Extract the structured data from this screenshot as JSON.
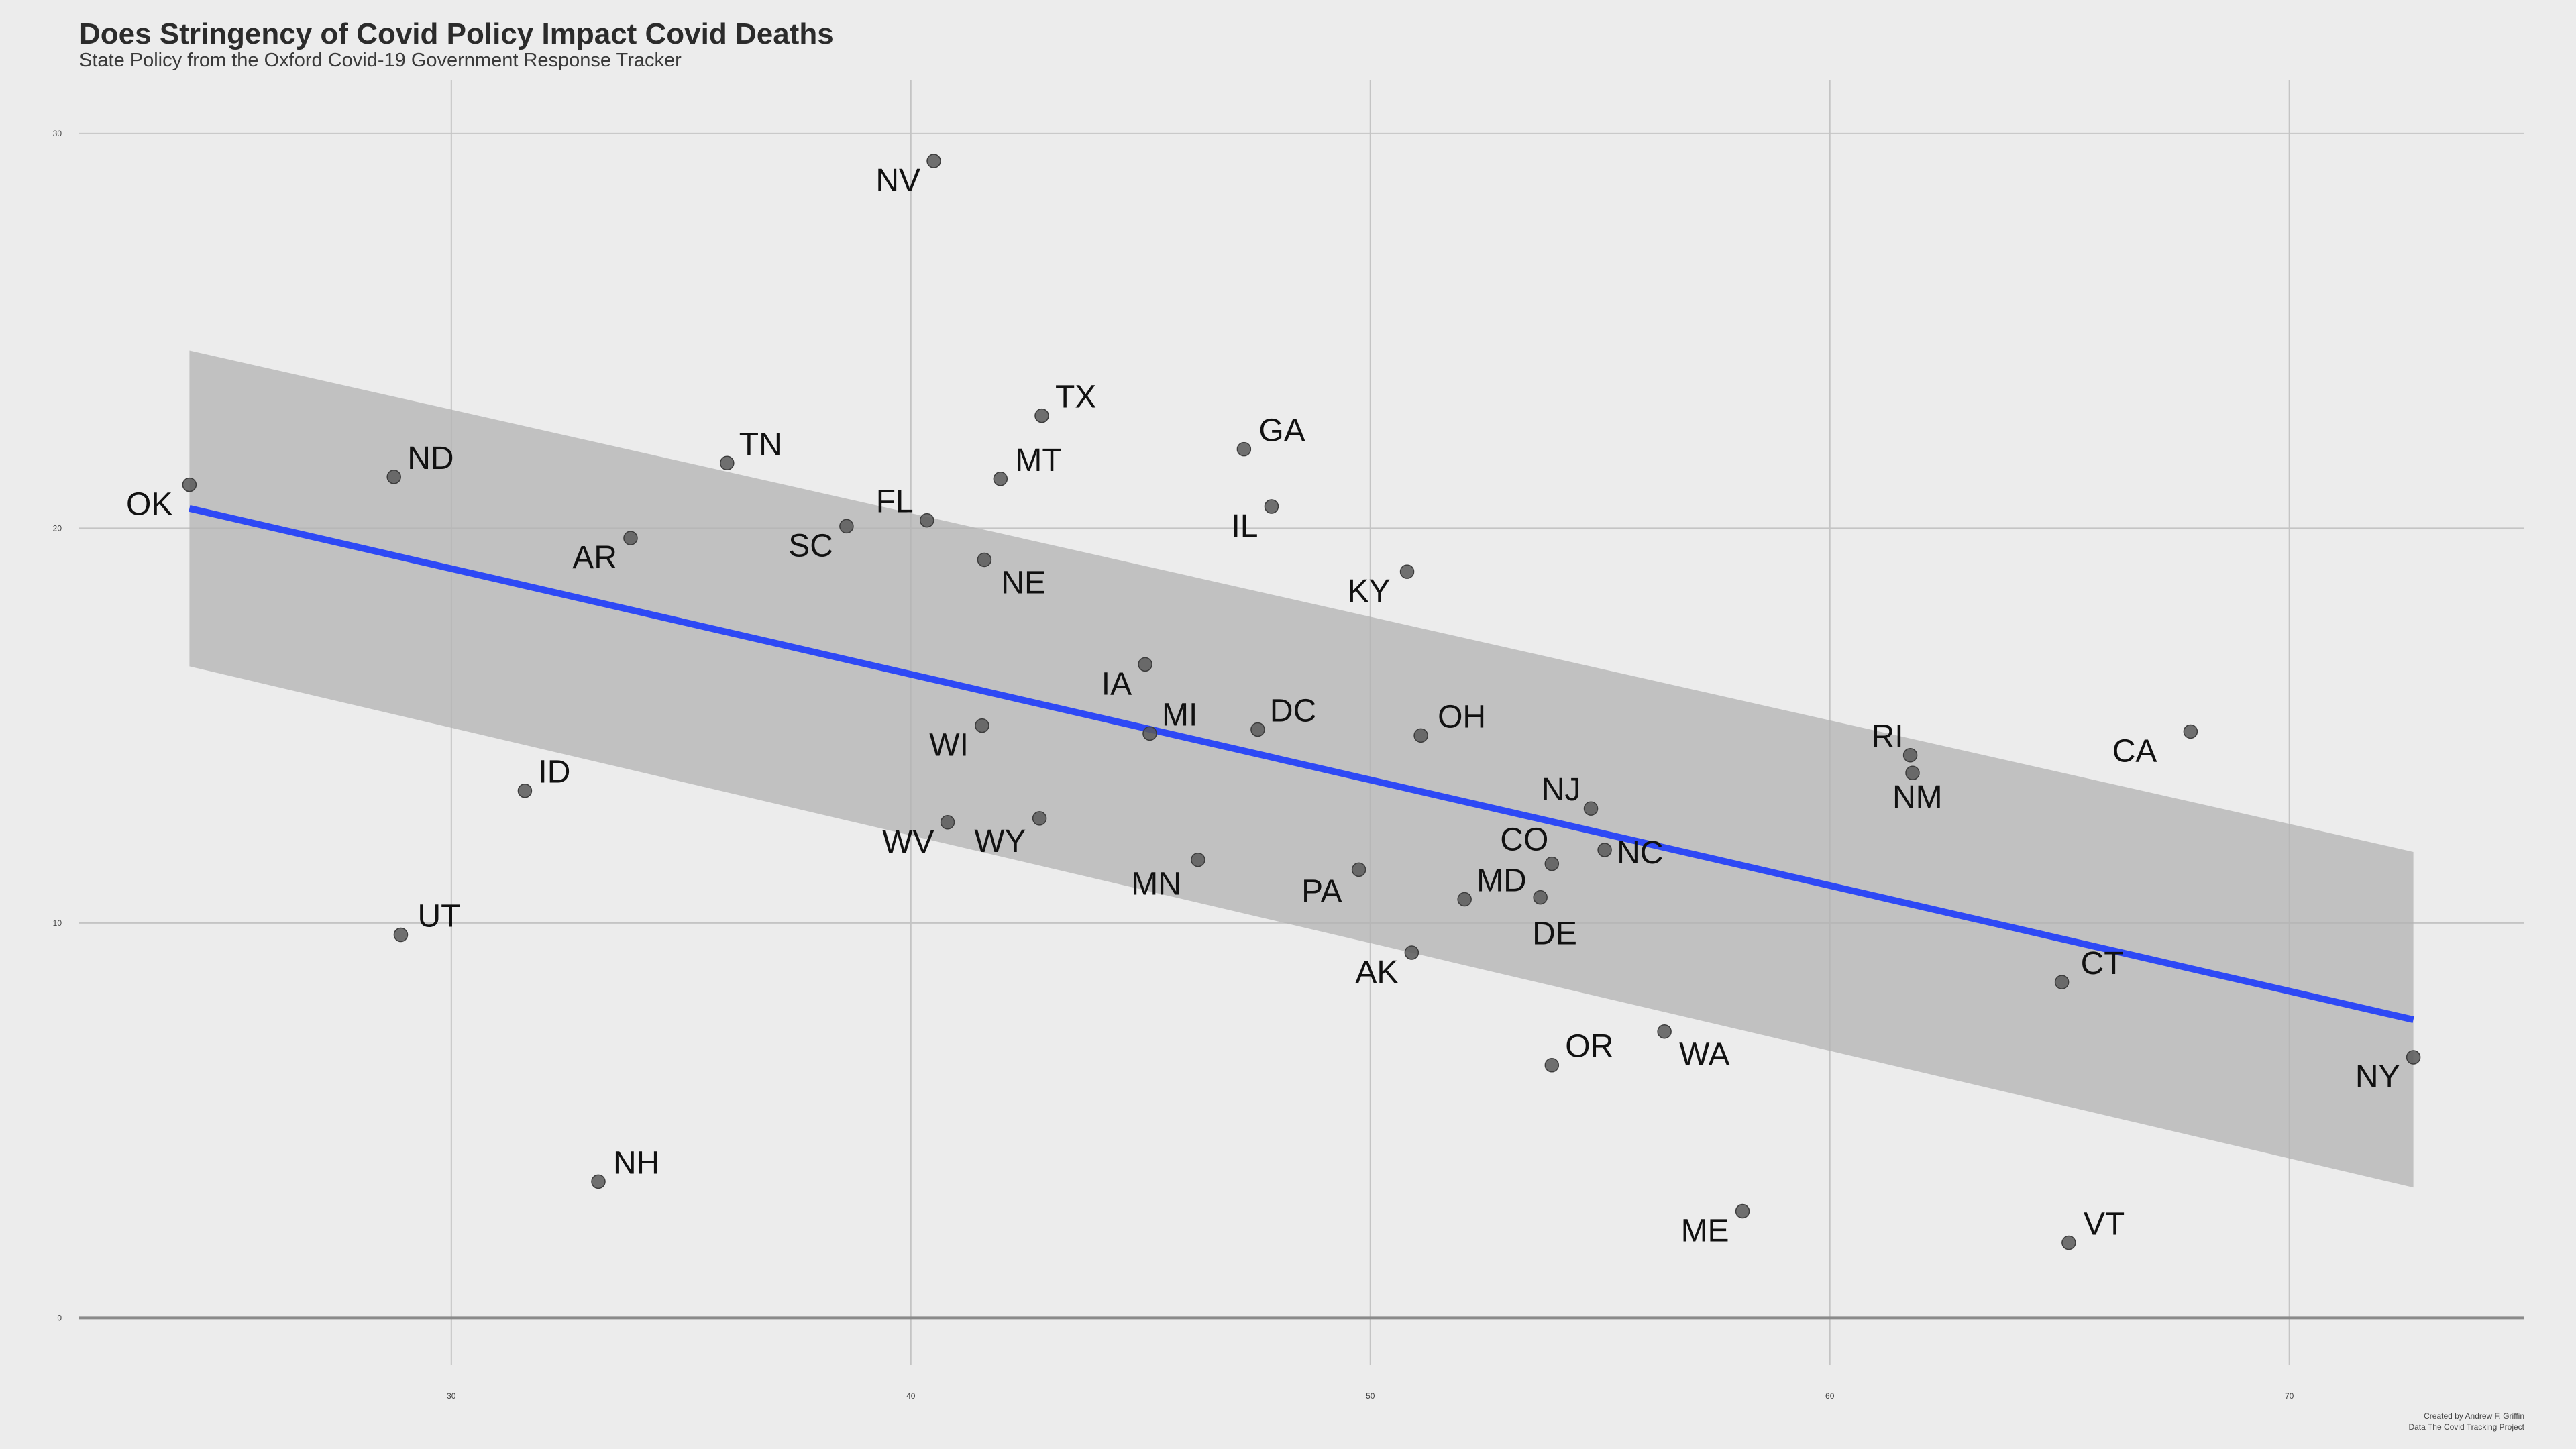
{
  "chart_data": {
    "type": "scatter",
    "title": "Does Stringency of Covid Policy Impact Covid Deaths",
    "subtitle": "State Policy from the Oxford Covid-19 Government Response Tracker",
    "xlabel": "",
    "ylabel": "",
    "xlim": [
      21.9,
      75.1
    ],
    "ylim": [
      -1.2,
      31.0
    ],
    "x_ticks": [
      30,
      40,
      50,
      60,
      70
    ],
    "x_tick_labels": [
      "30",
      "40",
      "50",
      "60",
      "70"
    ],
    "y_ticks": [
      0,
      10,
      20,
      30
    ],
    "y_tick_labels": [
      "0",
      "10",
      "20",
      "30"
    ],
    "grid": true,
    "point_color": "#595959",
    "trend_line_color": "#2e49f5",
    "confidence_band_color": "#b3b3b3",
    "trend_line": {
      "x": [
        24.3,
        72.7
      ],
      "y": [
        20.5,
        7.55
      ]
    },
    "confidence_band": {
      "x": [
        24.3,
        72.7
      ],
      "upper": [
        24.5,
        11.8
      ],
      "lower": [
        16.5,
        3.3
      ]
    },
    "points": [
      {
        "label": "OK",
        "x": 24.3,
        "y": 21.1
      },
      {
        "label": "ND",
        "x": 28.75,
        "y": 21.3
      },
      {
        "label": "UT",
        "x": 28.9,
        "y": 9.7
      },
      {
        "label": "ID",
        "x": 31.6,
        "y": 13.35
      },
      {
        "label": "NH",
        "x": 33.2,
        "y": 3.45
      },
      {
        "label": "AR",
        "x": 33.9,
        "y": 19.75
      },
      {
        "label": "TN",
        "x": 36.0,
        "y": 21.65
      },
      {
        "label": "SC",
        "x": 38.6,
        "y": 20.05
      },
      {
        "label": "NV",
        "x": 40.5,
        "y": 29.3
      },
      {
        "label": "FL",
        "x": 40.35,
        "y": 20.2
      },
      {
        "label": "WV",
        "x": 40.8,
        "y": 12.55
      },
      {
        "label": "WI",
        "x": 41.55,
        "y": 15.0
      },
      {
        "label": "NE",
        "x": 41.6,
        "y": 19.2
      },
      {
        "label": "MT",
        "x": 41.95,
        "y": 21.25
      },
      {
        "label": "WY",
        "x": 42.8,
        "y": 12.65
      },
      {
        "label": "TX",
        "x": 42.85,
        "y": 22.85
      },
      {
        "label": "IA",
        "x": 45.1,
        "y": 16.55
      },
      {
        "label": "MI",
        "x": 45.2,
        "y": 14.8
      },
      {
        "label": "MN",
        "x": 46.25,
        "y": 11.6
      },
      {
        "label": "GA",
        "x": 47.25,
        "y": 22.0
      },
      {
        "label": "DC",
        "x": 47.55,
        "y": 14.9
      },
      {
        "label": "IL",
        "x": 47.85,
        "y": 20.55
      },
      {
        "label": "PA",
        "x": 49.75,
        "y": 11.35
      },
      {
        "label": "KY",
        "x": 50.8,
        "y": 18.9
      },
      {
        "label": "AK",
        "x": 50.9,
        "y": 9.25
      },
      {
        "label": "OH",
        "x": 51.1,
        "y": 14.75
      },
      {
        "label": "MD",
        "x": 52.05,
        "y": 10.6
      },
      {
        "label": "DE",
        "x": 53.7,
        "y": 10.65
      },
      {
        "label": "OR",
        "x": 53.95,
        "y": 6.4
      },
      {
        "label": "CO",
        "x": 53.95,
        "y": 11.5
      },
      {
        "label": "NJ",
        "x": 54.8,
        "y": 12.9
      },
      {
        "label": "NC",
        "x": 55.1,
        "y": 11.85
      },
      {
        "label": "WA",
        "x": 56.4,
        "y": 7.25
      },
      {
        "label": "ME",
        "x": 58.1,
        "y": 2.7
      },
      {
        "label": "RI",
        "x": 61.75,
        "y": 14.25
      },
      {
        "label": "NM",
        "x": 61.8,
        "y": 13.8
      },
      {
        "label": "CT",
        "x": 65.05,
        "y": 8.5
      },
      {
        "label": "VT",
        "x": 65.2,
        "y": 1.9
      },
      {
        "label": "CA",
        "x": 67.85,
        "y": 14.85
      },
      {
        "label": "NY",
        "x": 72.7,
        "y": 6.6
      }
    ],
    "credits": [
      "Created by Andrew F. Griffin",
      "Data The Covid Tracking Project"
    ]
  }
}
